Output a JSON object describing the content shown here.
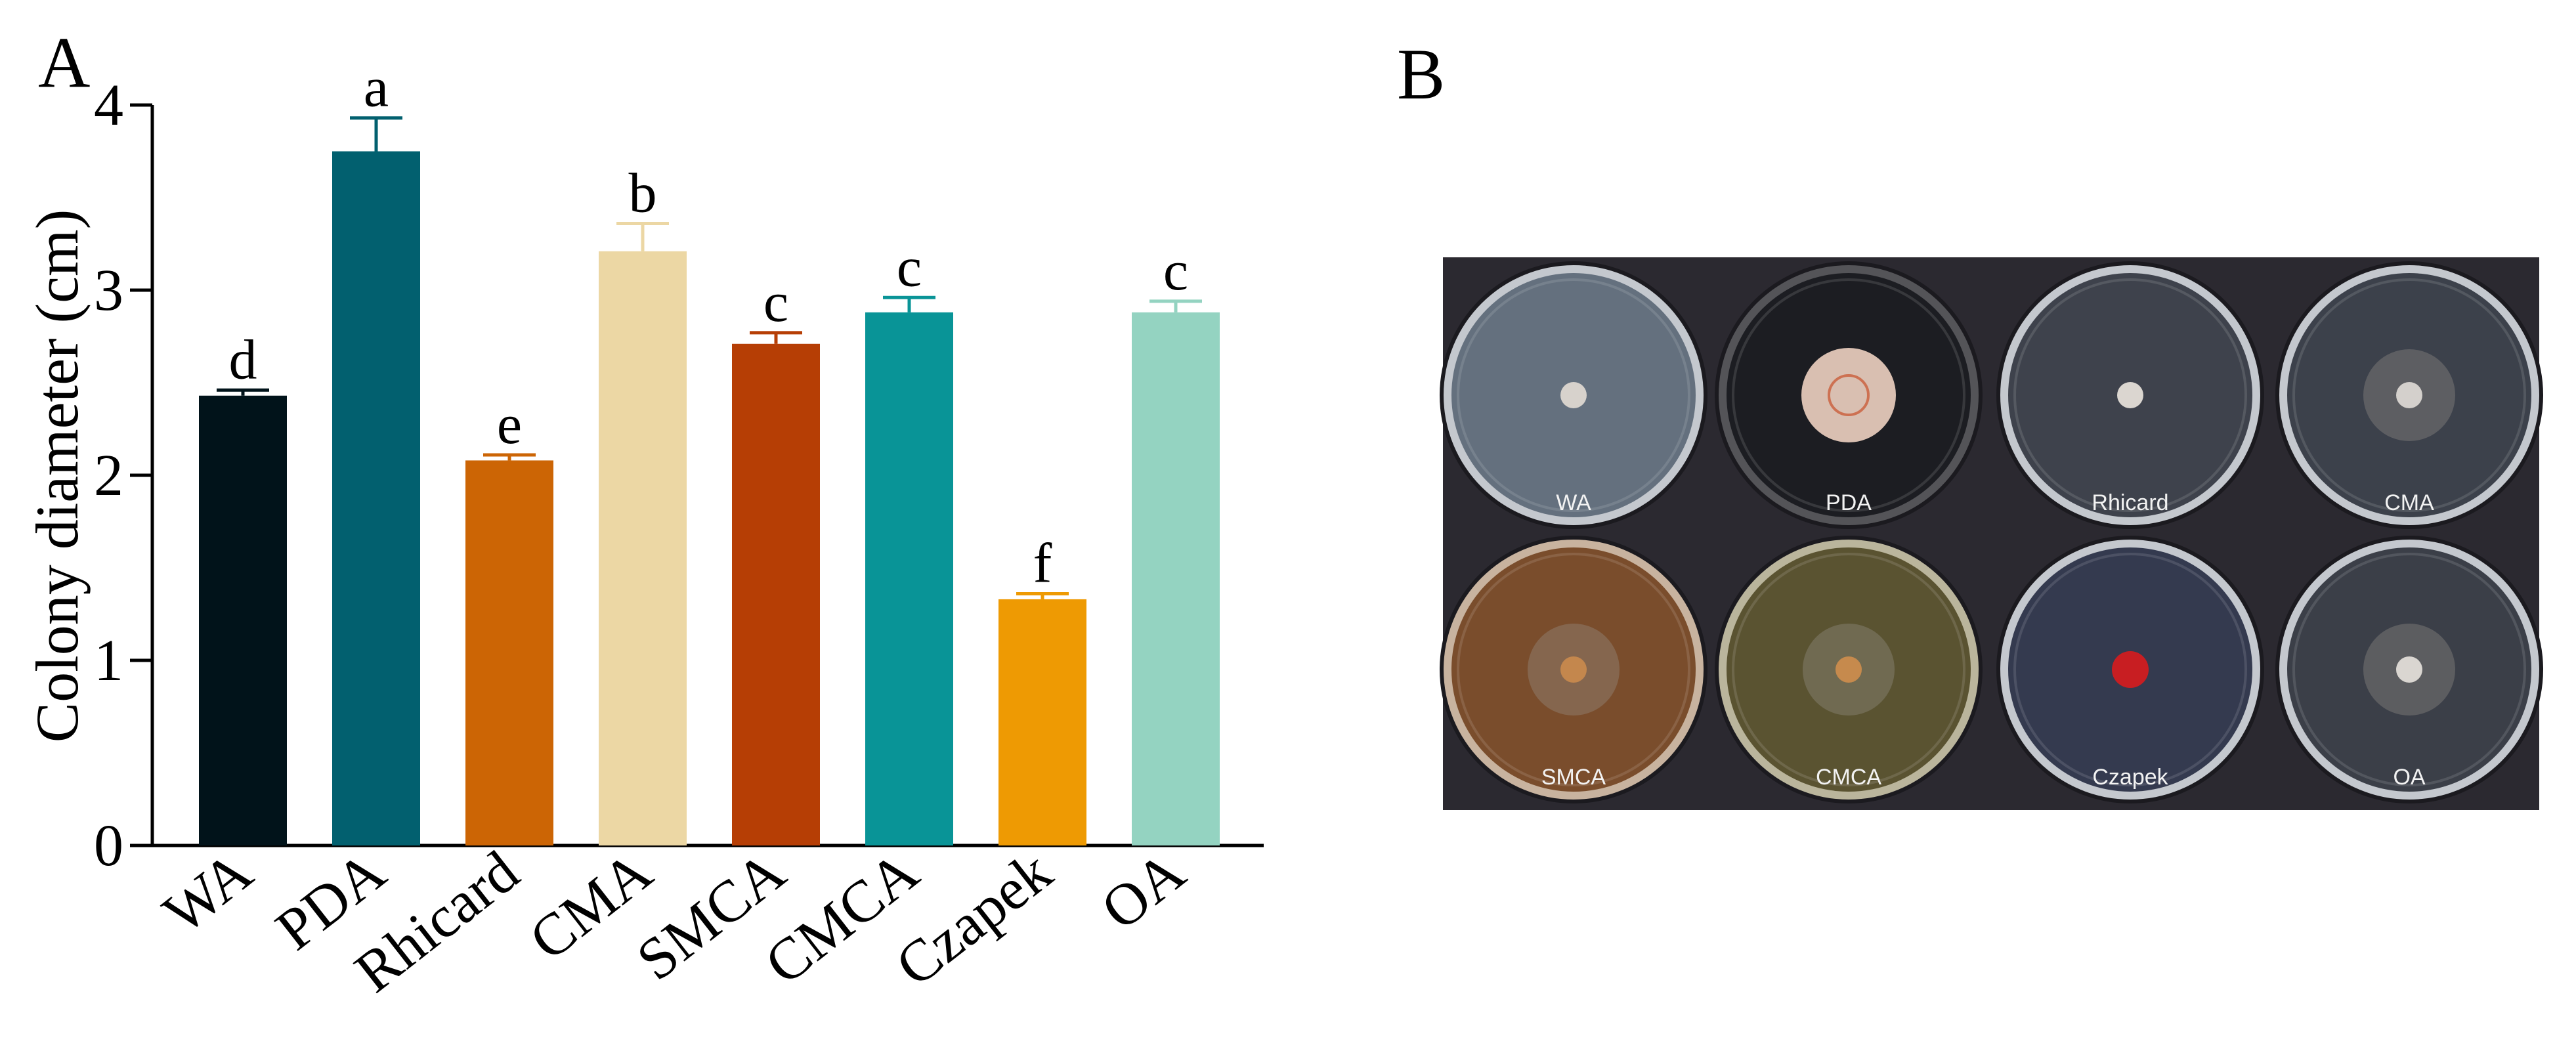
{
  "panels": {
    "a_label": "A",
    "b_label": "B"
  },
  "chart_data": {
    "type": "bar",
    "title": "",
    "xlabel": "",
    "ylabel": "Colony diameter (cm)",
    "ylim": [
      0,
      4
    ],
    "yticks": [
      "0",
      "1",
      "2",
      "3",
      "4"
    ],
    "grid": false,
    "categories": [
      "WA",
      "PDA",
      "Rhicard",
      "CMA",
      "SMCA",
      "CMCA",
      "Czapek",
      "OA"
    ],
    "values": [
      2.43,
      3.75,
      2.08,
      3.21,
      2.71,
      2.88,
      1.33,
      2.88
    ],
    "errors": [
      0.03,
      0.18,
      0.03,
      0.15,
      0.06,
      0.08,
      0.03,
      0.06
    ],
    "significance": [
      "d",
      "a",
      "e",
      "b",
      "c",
      "c",
      "f",
      "c"
    ],
    "colors": [
      "#01131a",
      "#02606f",
      "#cc6505",
      "#ecd7a4",
      "#b63e05",
      "#099497",
      "#ee9a03",
      "#94d3c1"
    ]
  },
  "photo": {
    "background": "#2b2930",
    "plates": [
      {
        "label": "WA",
        "agar": "#64707e",
        "rim": "#c4c8ce",
        "colony": "#d7d2cc"
      },
      {
        "label": "PDA",
        "agar": "#1c1d22",
        "rim": "#545458",
        "colony": "#d9bfb1"
      },
      {
        "label": "Rhicard",
        "agar": "#3e424c",
        "rim": "#c4c8ce",
        "colony": "#dbd6d0"
      },
      {
        "label": "CMA",
        "agar": "#3c414b",
        "rim": "#c4c8ce",
        "colony": "#d4d0cc"
      },
      {
        "label": "SMCA",
        "agar": "#7a4d2c",
        "rim": "#c8b39f",
        "colony": "#c4874d"
      },
      {
        "label": "CMCA",
        "agar": "#5a5331",
        "rim": "#bab59c",
        "colony": "#c68a4d"
      },
      {
        "label": "Czapek",
        "agar": "#343a4f",
        "rim": "#c4c8ce",
        "colony": "#c81e22"
      },
      {
        "label": "OA",
        "agar": "#3b3f48",
        "rim": "#c4c8ce",
        "colony": "#dad6d1"
      }
    ]
  }
}
